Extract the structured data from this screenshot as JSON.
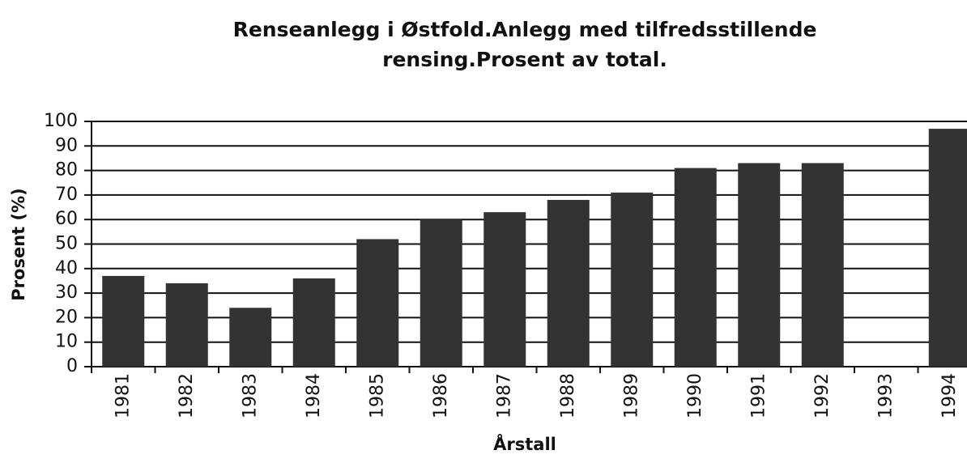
{
  "chart_data": {
    "type": "bar",
    "title": [
      "Renseanlegg i Østfold.Anlegg med tilfredsstillende",
      "rensing.Prosent av total."
    ],
    "xlabel": "Årstall",
    "ylabel": "Prosent (%)",
    "categories": [
      "1981",
      "1982",
      "1983",
      "1984",
      "1985",
      "1986",
      "1987",
      "1988",
      "1989",
      "1990",
      "1991",
      "1992",
      "1993",
      "1994"
    ],
    "values": [
      37,
      34,
      24,
      36,
      52,
      60,
      63,
      68,
      71,
      81,
      83,
      83,
      null,
      97
    ],
    "color": "#333333",
    "ylim": [
      0,
      100
    ],
    "yticks": [
      0,
      10,
      20,
      30,
      40,
      50,
      60,
      70,
      80,
      90,
      100
    ],
    "grid": true
  }
}
